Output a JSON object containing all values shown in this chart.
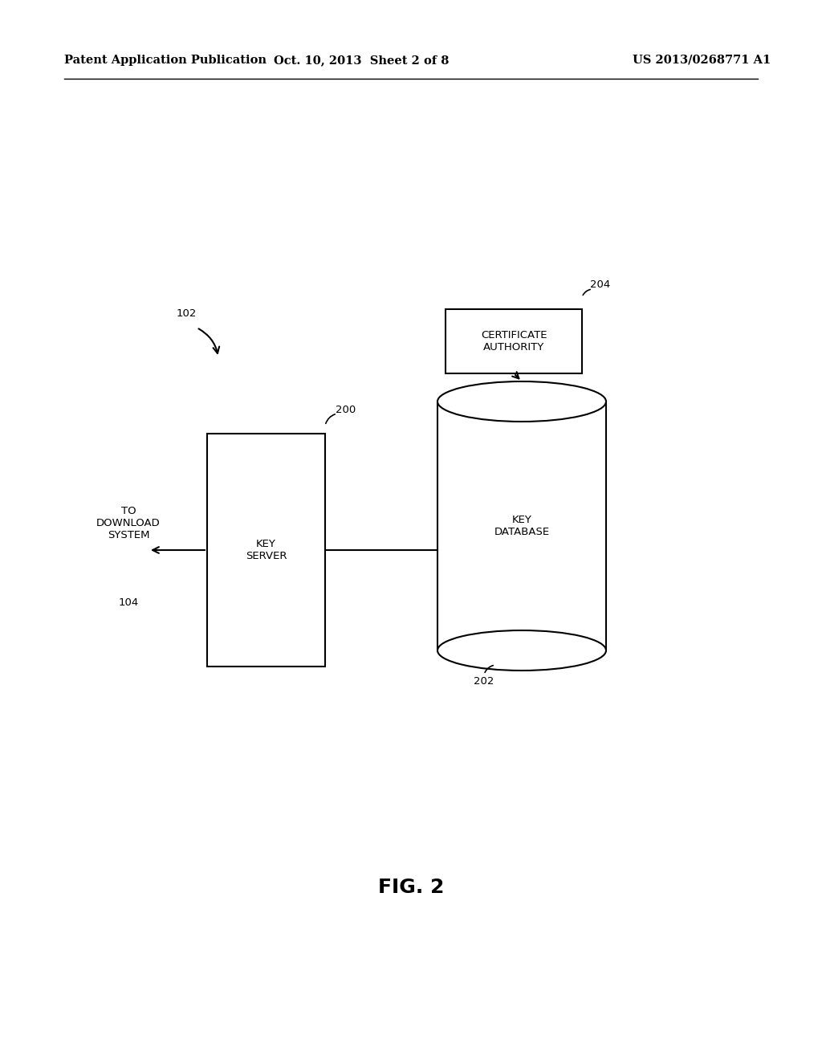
{
  "background_color": "#ffffff",
  "header_left": "Patent Application Publication",
  "header_mid": "Oct. 10, 2013  Sheet 2 of 8",
  "header_right": "US 2013/0268771 A1",
  "fig_label": "FIG. 2",
  "key_server_label": "KEY\nSERVER",
  "key_server_num": "200",
  "key_database_label": "KEY\nDATABASE",
  "key_database_num": "202",
  "cert_authority_label": "CERTIFICATE\nAUTHORITY",
  "cert_authority_num": "204",
  "download_system_label": "TO\nDOWNLOAD\nSYSTEM",
  "download_system_num": "104",
  "diagram_num": "102",
  "line_color": "#000000",
  "text_color": "#000000",
  "box_fill": "#ffffff",
  "font_size_header": 10.5,
  "font_size_label": 9.5,
  "font_size_num": 9.5,
  "font_size_fig": 18
}
